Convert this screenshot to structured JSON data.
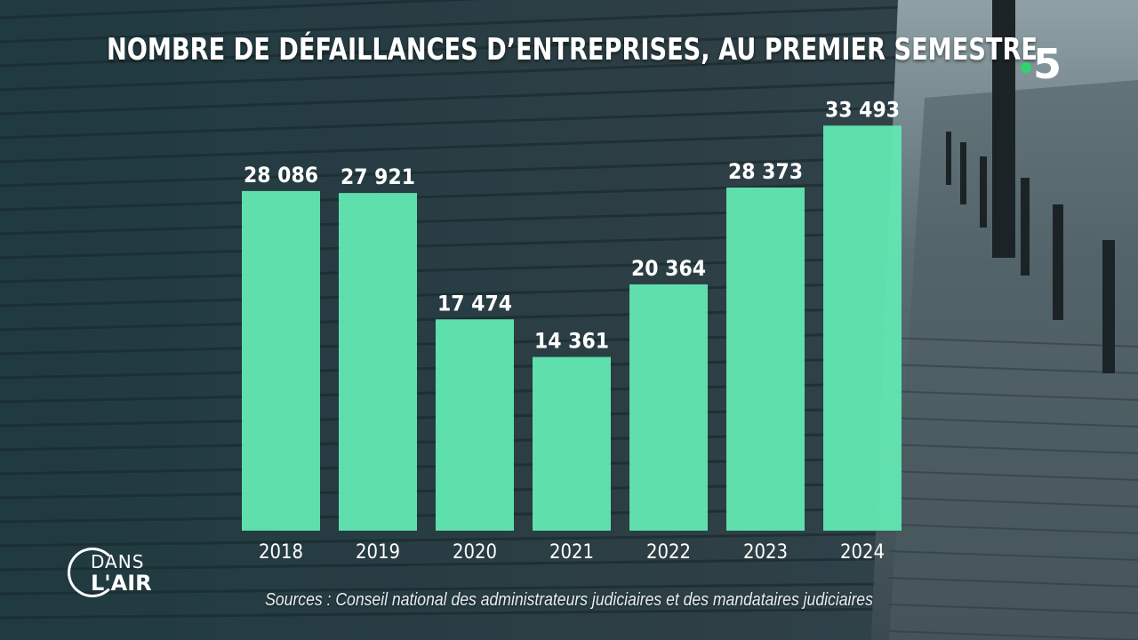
{
  "broadcast": {
    "channel_logo": "5",
    "show_logo_line1": "DANS",
    "show_logo_line2": "L'AIR"
  },
  "colors": {
    "bar": "#62e8b2",
    "text": "#ffffff",
    "accent_dot": "#2fd46b"
  },
  "chart_data": {
    "type": "bar",
    "title": "NOMBRE DE DÉFAILLANCES D’ENTREPRISES, AU PREMIER SEMESTRE",
    "categories": [
      "2018",
      "2019",
      "2020",
      "2021",
      "2022",
      "2023",
      "2024"
    ],
    "values": [
      28086,
      27921,
      17474,
      14361,
      20364,
      28373,
      33493
    ],
    "value_labels": [
      "28 086",
      "27 921",
      "17 474",
      "14 361",
      "20 364",
      "28 373",
      "33 493"
    ],
    "xlabel": "",
    "ylabel": "",
    "ylim": [
      0,
      38000
    ],
    "grid": false,
    "source": "Sources : Conseil national des administrateurs judiciaires et des mandataires judiciaires"
  }
}
